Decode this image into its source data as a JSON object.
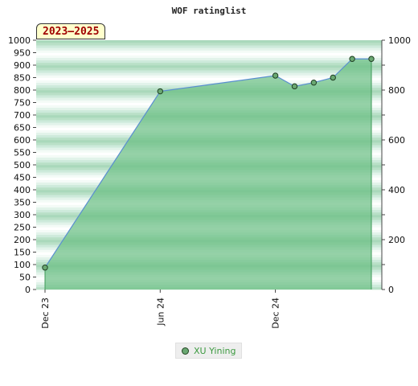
{
  "chart_data": {
    "type": "area",
    "title": "WOF ratinglist",
    "period_badge": "2023–2025",
    "ylim": [
      0,
      1000
    ],
    "y_ticks_left": [
      0,
      50,
      100,
      150,
      200,
      250,
      300,
      350,
      400,
      450,
      500,
      550,
      600,
      650,
      700,
      750,
      800,
      850,
      900,
      950,
      1000
    ],
    "y_ticks_right": [
      0,
      200,
      400,
      600,
      800,
      1000
    ],
    "x_tick_labels": [
      "Dec 23",
      "Jun 24",
      "Dec 24"
    ],
    "series": [
      {
        "name": "XU Yining",
        "points": [
          {
            "x": "2023-12",
            "y": 88
          },
          {
            "x": "2024-06",
            "y": 795
          },
          {
            "x": "2024-12",
            "y": 858
          },
          {
            "x": "2025-01",
            "y": 815
          },
          {
            "x": "2025-02",
            "y": 830
          },
          {
            "x": "2025-03",
            "y": 850
          },
          {
            "x": "2025-04",
            "y": 925
          },
          {
            "x": "2025-05",
            "y": 925
          }
        ]
      }
    ],
    "legend_position": "bottom-center",
    "colors": {
      "fill": "#6cbf85",
      "line": "#5a8fd0",
      "band_dark": "#b8dfc6",
      "band_light": "#ffffff"
    }
  }
}
